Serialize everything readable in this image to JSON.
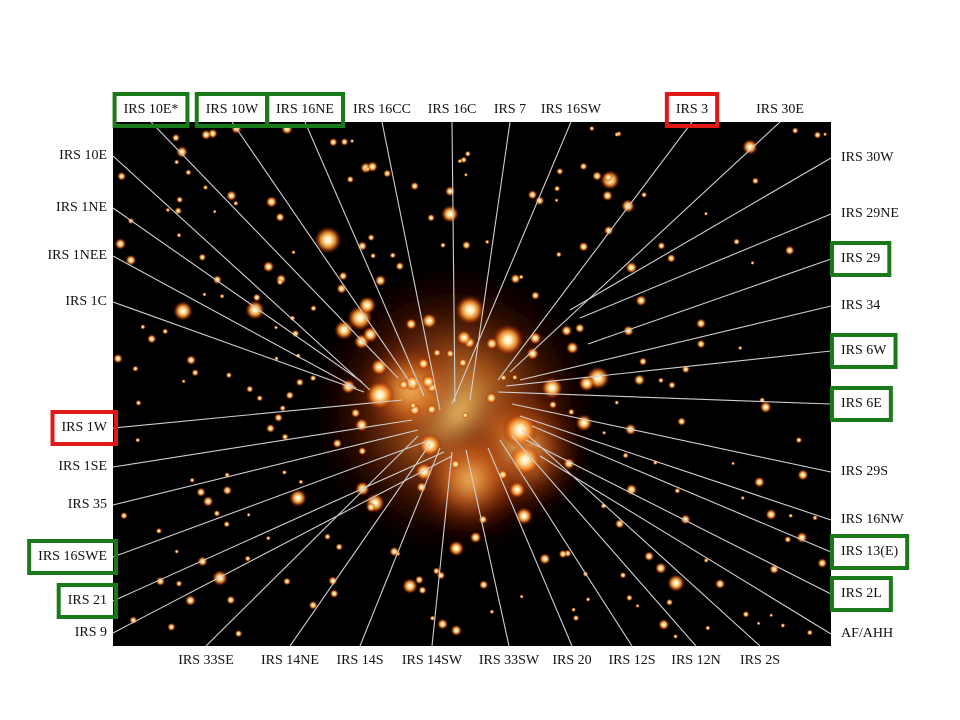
{
  "colors": {
    "background": "#000000",
    "glow_core": "#fff8e8",
    "glow_mid": "#ffb040",
    "glow_outer": "#a02808",
    "leader_line": "#cfcfcf",
    "box_green": "#1a7a1a",
    "box_red": "#e01818"
  },
  "labels": {
    "top": [
      "IRS 10E*",
      "IRS 10W",
      "IRS 16NE",
      "IRS 16CC",
      "IRS 16C",
      "IRS 7",
      "IRS 16SW",
      "IRS 3",
      "IRS 30E"
    ],
    "left": [
      "IRS 10E",
      "IRS 1NE",
      "IRS 1NEE",
      "IRS 1C",
      "IRS 1W",
      "IRS 1SE",
      "IRS 35",
      "IRS 16SWE",
      "IRS 21",
      "IRS 9"
    ],
    "right": [
      "IRS 30W",
      "IRS 29NE",
      "IRS 29",
      "IRS 34",
      "IRS 6W",
      "IRS 6E",
      "IRS 29S",
      "IRS 16NW",
      "IRS 13(E)",
      "IRS 2L",
      "AF/AHH"
    ],
    "bottom": [
      "IRS 33SE",
      "IRS 14NE",
      "IRS 14S",
      "IRS 14SW",
      "IRS 33SW",
      "IRS 20",
      "IRS 12S",
      "IRS 12N",
      "IRS 2S"
    ]
  },
  "boxed": {
    "green": [
      "IRS 10E*",
      "IRS 10W",
      "IRS 16NE",
      "IRS 29",
      "IRS 6W",
      "IRS 6E",
      "IRS 13(E)",
      "IRS 2L",
      "IRS 16SWE",
      "IRS 21"
    ],
    "red": [
      "IRS 3",
      "IRS 1W"
    ]
  }
}
